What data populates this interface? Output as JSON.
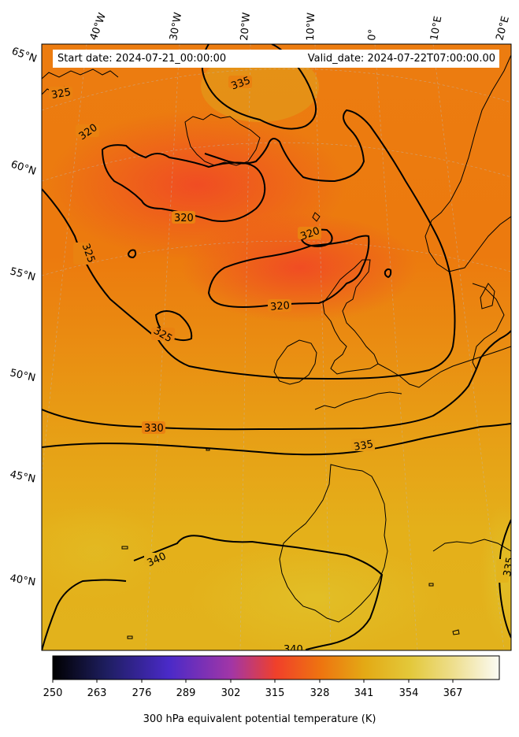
{
  "header": {
    "start_date": "Start date: 2024-07-21_00:00:00",
    "valid_date": "Valid_date: 2024-07-22T07:00:00.00"
  },
  "longitude_labels": [
    "40°W",
    "30°W",
    "20°W",
    "10°W",
    "0°",
    "10°E",
    "20°E"
  ],
  "latitude_labels": [
    "65°N",
    "60°N",
    "55°N",
    "50°N",
    "45°N",
    "40°N"
  ],
  "contour_labels": [
    "325",
    "335",
    "320",
    "320",
    "325",
    "320",
    "320",
    "325",
    "330",
    "335",
    "340",
    "335",
    "340"
  ],
  "colorbar": {
    "ticks": [
      "250",
      "263",
      "276",
      "289",
      "302",
      "315",
      "328",
      "341",
      "354",
      "367"
    ],
    "label": "300 hPa equivalent potential temperature (K)",
    "colors": [
      "#000000",
      "#1a1a55",
      "#4a2ac8",
      "#a33aa0",
      "#f0402a",
      "#ee7a10",
      "#e3aa15",
      "#e3c83a",
      "#eedf90",
      "#fbfbf2"
    ]
  },
  "field_colors": {
    "warm_south": "#e4b21c",
    "mid": "#ea8c10",
    "cool_core": "#f05a22"
  }
}
